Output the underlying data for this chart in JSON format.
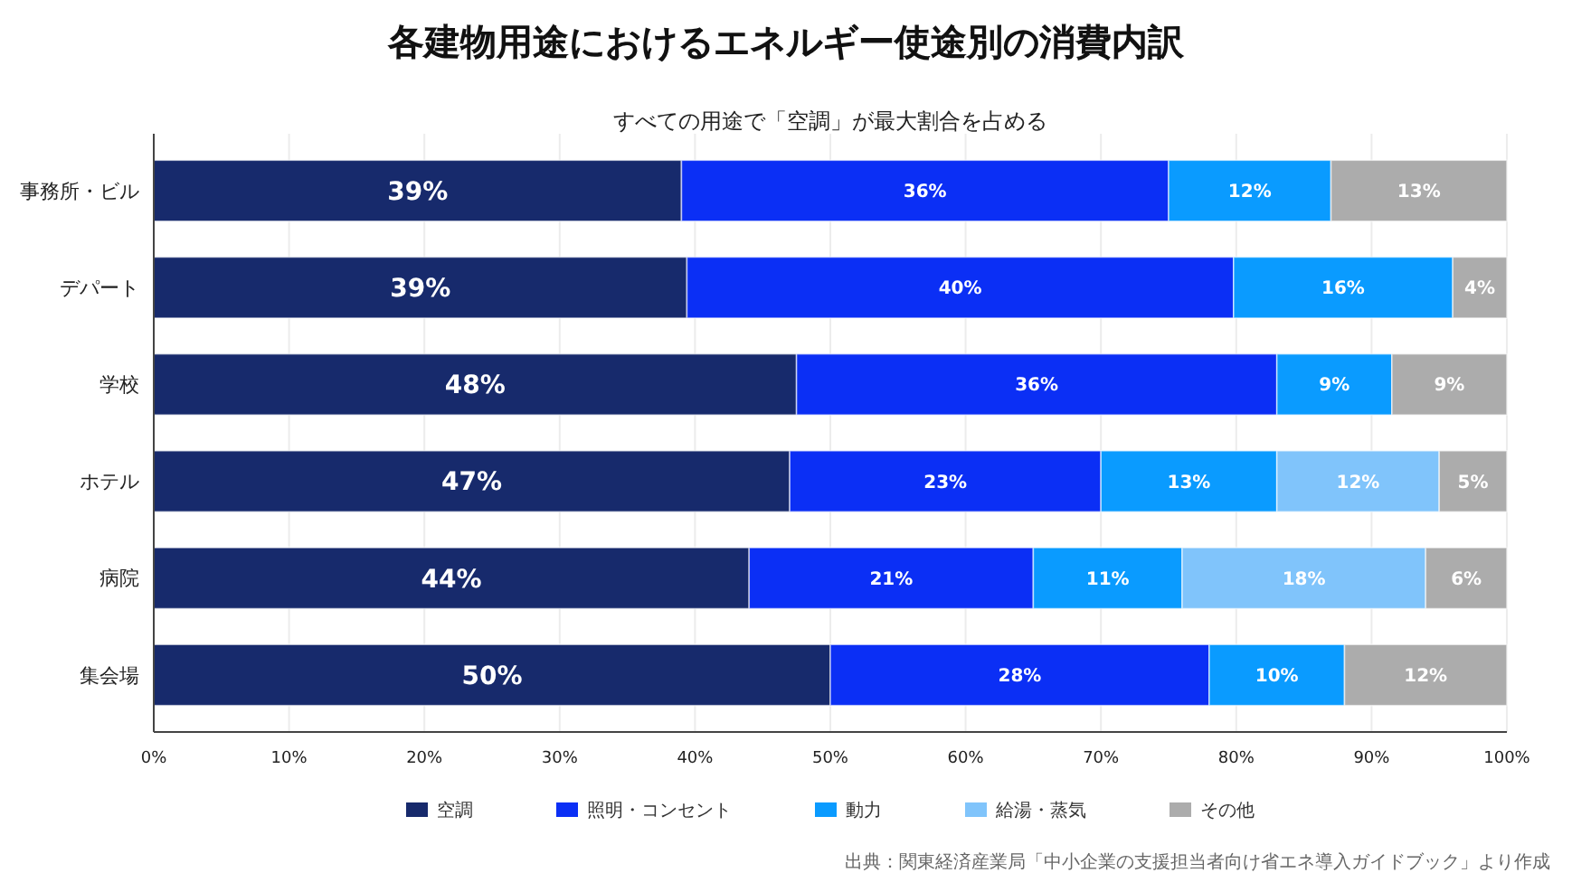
{
  "chart_data": {
    "type": "bar",
    "orientation": "horizontal",
    "stacked": true,
    "title": "各建物用途におけるエネルギー使途別の消費内訳",
    "subtitle": "すべての用途で「空調」が最大割合を占める",
    "categories": [
      "事務所・ビル",
      "デパート",
      "学校",
      "ホテル",
      "病院",
      "集会場"
    ],
    "series": [
      {
        "name": "空調",
        "color": "#172a6c",
        "values": [
          39,
          39.4,
          47.5,
          47,
          44,
          50
        ],
        "value_labels": [
          "39%",
          "39%",
          "48%",
          "47%",
          "44%",
          "50%"
        ]
      },
      {
        "name": "照明・コンセント",
        "color": "#0b2ff5",
        "values": [
          36,
          40.4,
          35.5,
          23,
          21,
          28
        ],
        "value_labels": [
          "36%",
          "40%",
          "36%",
          "23%",
          "21%",
          "28%"
        ]
      },
      {
        "name": "動力",
        "color": "#0a9bff",
        "values": [
          12,
          16.2,
          8.5,
          13,
          11,
          10
        ],
        "value_labels": [
          "12%",
          "16%",
          "9%",
          "13%",
          "11%",
          "10%"
        ]
      },
      {
        "name": "給湯・蒸気",
        "color": "#80c4fb",
        "values": [
          null,
          null,
          null,
          12,
          18,
          null
        ],
        "value_labels": [
          null,
          null,
          null,
          "12%",
          "18%",
          null
        ]
      },
      {
        "name": "その他",
        "color": "#acacac",
        "values": [
          13,
          4,
          8.5,
          5,
          6,
          12
        ],
        "value_labels": [
          "13%",
          "4%",
          "9%",
          "5%",
          "6%",
          "12%"
        ]
      }
    ],
    "xlim": [
      0,
      100
    ],
    "xticks": [
      {
        "value": 0,
        "label": "0%"
      },
      {
        "value": 10,
        "label": "10%"
      },
      {
        "value": 20,
        "label": "20%"
      },
      {
        "value": 30,
        "label": "30%"
      },
      {
        "value": 40,
        "label": "40%"
      },
      {
        "value": 50,
        "label": "50%"
      },
      {
        "value": 60,
        "label": "60%"
      },
      {
        "value": 70,
        "label": "70%"
      },
      {
        "value": 80,
        "label": "80%"
      },
      {
        "value": 90,
        "label": "90%"
      },
      {
        "value": 100,
        "label": "100%"
      }
    ],
    "grid": "x",
    "legend": "bottom",
    "annotations": [
      "出典：関東経済産業局「中小企業の支援担当者向け省エネ導入ガイドブック」より作成"
    ]
  }
}
